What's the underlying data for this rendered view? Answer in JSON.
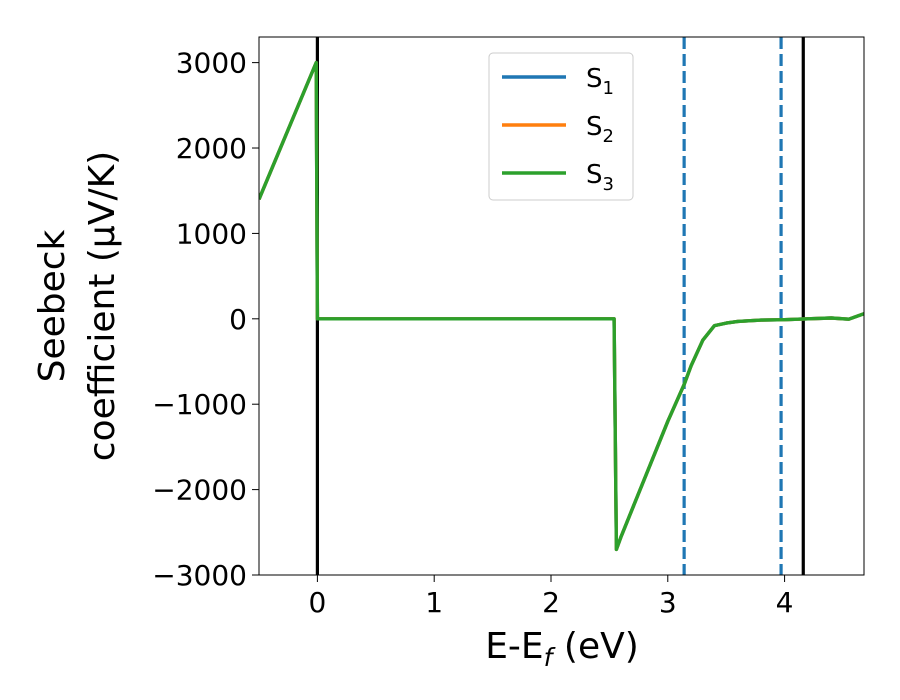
{
  "chart_data": {
    "type": "line",
    "title": "",
    "xlabel": {
      "main": "E-E",
      "sub": "f",
      "suffix": " (eV)"
    },
    "ylabel": {
      "line1": "Seebeck",
      "line2": "coefficient  (μV/K)"
    },
    "xlim": [
      -0.5,
      4.68
    ],
    "ylim": [
      -3000,
      3300
    ],
    "xticks": [
      0,
      1,
      2,
      3,
      4
    ],
    "xtick_labels": [
      "0",
      "1",
      "2",
      "3",
      "4"
    ],
    "yticks": [
      -3000,
      -2000,
      -1000,
      0,
      1000,
      2000,
      3000
    ],
    "ytick_labels": [
      "−3000",
      "−2000",
      "−1000",
      "0",
      "1000",
      "2000",
      "3000"
    ],
    "grid": false,
    "legend_position": "top-center",
    "vlines": [
      {
        "x": 0.0,
        "style": "solid",
        "color": "#000000"
      },
      {
        "x": 3.14,
        "style": "dashed",
        "color": "#1f77b4"
      },
      {
        "x": 3.97,
        "style": "dashed",
        "color": "#1f77b4"
      },
      {
        "x": 4.16,
        "style": "solid",
        "color": "#000000"
      }
    ],
    "series": [
      {
        "name": {
          "base": "S",
          "sub": "1"
        },
        "color": "#1f77b4",
        "x": [
          -0.5,
          -0.01,
          0.0,
          2.54,
          2.56,
          2.6,
          3.0,
          3.14,
          3.2,
          3.3,
          3.4,
          3.5,
          3.6,
          3.8,
          4.0,
          4.2,
          4.4,
          4.55,
          4.68
        ],
        "y": [
          1400,
          3000,
          0,
          0,
          -2700,
          -2550,
          -1200,
          -770,
          -550,
          -250,
          -80,
          -50,
          -30,
          -15,
          -10,
          0,
          10,
          -5,
          60
        ]
      },
      {
        "name": {
          "base": "S",
          "sub": "2"
        },
        "color": "#ff7f0e",
        "x": [
          -0.5,
          -0.01,
          0.0,
          2.54,
          2.56,
          2.6,
          3.0,
          3.14,
          3.2,
          3.3,
          3.4,
          3.5,
          3.6,
          3.8,
          4.0,
          4.2,
          4.4,
          4.55,
          4.68
        ],
        "y": [
          1400,
          3000,
          0,
          0,
          -2700,
          -2550,
          -1200,
          -770,
          -550,
          -250,
          -80,
          -50,
          -30,
          -15,
          -10,
          0,
          10,
          -5,
          60
        ]
      },
      {
        "name": {
          "base": "S",
          "sub": "3"
        },
        "color": "#2ca02c",
        "x": [
          -0.5,
          -0.01,
          0.0,
          2.54,
          2.56,
          2.6,
          3.0,
          3.14,
          3.2,
          3.3,
          3.4,
          3.5,
          3.6,
          3.8,
          4.0,
          4.2,
          4.4,
          4.55,
          4.68
        ],
        "y": [
          1400,
          3000,
          0,
          0,
          -2700,
          -2550,
          -1200,
          -770,
          -550,
          -250,
          -80,
          -50,
          -30,
          -15,
          -10,
          0,
          10,
          -5,
          60
        ]
      }
    ]
  }
}
